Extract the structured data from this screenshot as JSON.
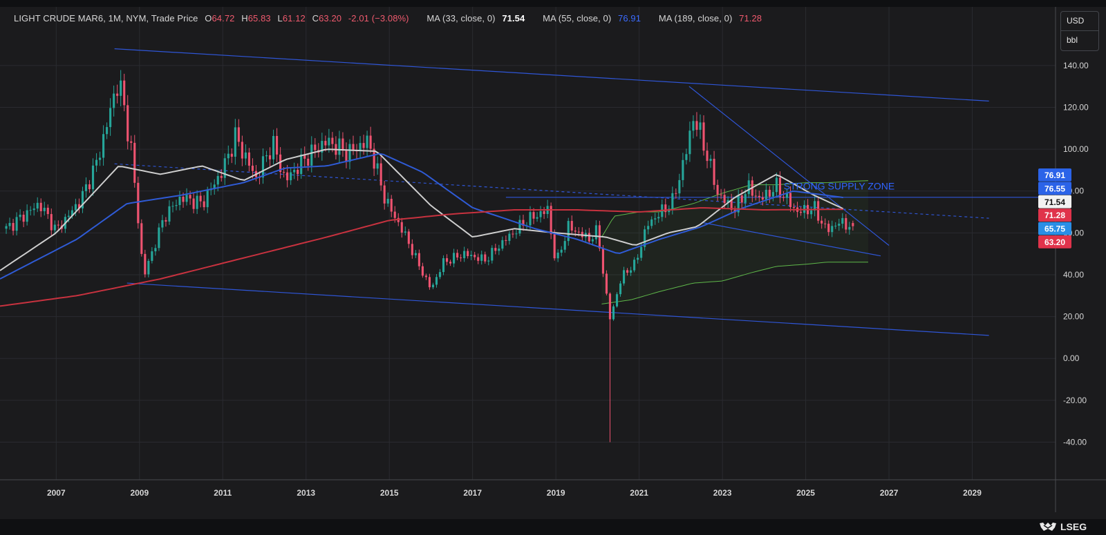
{
  "legend": {
    "symbol": "LIGHT CRUDE MAR6, 1M, NYM, Trade Price",
    "open_label": "O",
    "open": "64.72",
    "high_label": "H",
    "high": "65.83",
    "low_label": "L",
    "low": "61.12",
    "close_label": "C",
    "close": "63.20",
    "change": "-2.01 (−3.08%)",
    "ma33_label": "MA (33, close, 0)",
    "ma33_value": "71.54",
    "ma55_label": "MA (55, close, 0)",
    "ma55_value": "76.91",
    "ma189_label": "MA (189, close, 0)",
    "ma189_value": "71.28"
  },
  "currency": {
    "unit": "USD",
    "per": "bbl"
  },
  "brand": "LSEG",
  "annotation": "STRONG SUPPLY ZONE",
  "colors": {
    "up": "#26a69a",
    "down": "#ef5370",
    "ma33": "#cfcfcf",
    "ma55": "#2f5bd6",
    "ma189": "#c8323f",
    "trendline": "#2f56d8",
    "band": "#5fb84a",
    "grid": "#2a2b30"
  },
  "chart_data": {
    "type": "candlestick",
    "title": "LIGHT CRUDE MAR6, 1M, NYM, Trade Price",
    "x_ticks": [
      "2007",
      "2009",
      "2011",
      "2013",
      "2015",
      "2017",
      "2019",
      "2021",
      "2023",
      "2025",
      "2027",
      "2029"
    ],
    "y_ticks": [
      "140.00",
      "120.00",
      "100.00",
      "80.00",
      "60.00",
      "40.00",
      "20.00",
      "0.00",
      "-20.00",
      "-40.00"
    ],
    "ylim": [
      -58,
      168
    ],
    "xlim": [
      2005.65,
      2031.0
    ],
    "ohlc_keypoints": [
      [
        2005.8,
        62
      ],
      [
        2006.6,
        74
      ],
      [
        2007.0,
        61
      ],
      [
        2007.6,
        76
      ],
      [
        2008.0,
        95
      ],
      [
        2008.5,
        134
      ],
      [
        2008.8,
        100
      ],
      [
        2009.1,
        39
      ],
      [
        2009.6,
        68
      ],
      [
        2010.0,
        77
      ],
      [
        2010.5,
        74
      ],
      [
        2011.0,
        90
      ],
      [
        2011.3,
        106
      ],
      [
        2011.8,
        86
      ],
      [
        2012.2,
        103
      ],
      [
        2012.5,
        85
      ],
      [
        2013.0,
        96
      ],
      [
        2013.5,
        104
      ],
      [
        2014.0,
        98
      ],
      [
        2014.5,
        104
      ],
      [
        2014.9,
        76
      ],
      [
        2015.4,
        58
      ],
      [
        2015.7,
        45
      ],
      [
        2016.0,
        33
      ],
      [
        2016.3,
        46
      ],
      [
        2016.8,
        50
      ],
      [
        2017.3,
        47
      ],
      [
        2017.8,
        57
      ],
      [
        2018.3,
        66
      ],
      [
        2018.8,
        71
      ],
      [
        2019.0,
        45
      ],
      [
        2019.3,
        63
      ],
      [
        2019.8,
        57
      ],
      [
        2020.0,
        61
      ],
      [
        2020.2,
        32
      ],
      [
        2020.3,
        19
      ],
      [
        2020.6,
        40
      ],
      [
        2020.9,
        45
      ],
      [
        2021.2,
        64
      ],
      [
        2021.8,
        75
      ],
      [
        2022.1,
        96
      ],
      [
        2022.3,
        115
      ],
      [
        2022.5,
        106
      ],
      [
        2022.9,
        78
      ],
      [
        2023.3,
        71
      ],
      [
        2023.6,
        82
      ],
      [
        2023.9,
        76
      ],
      [
        2024.3,
        82
      ],
      [
        2024.8,
        70
      ],
      [
        2025.2,
        72
      ],
      [
        2025.5,
        61
      ],
      [
        2025.8,
        65
      ],
      [
        2026.1,
        63.2
      ]
    ],
    "last_candle": {
      "open": 64.72,
      "high": 65.83,
      "low": 61.12,
      "close": 63.2
    },
    "spike_low": -40,
    "moving_averages": [
      {
        "name": "MA (33, close, 0)",
        "last": 71.54,
        "keypoints": [
          [
            2005.65,
            42
          ],
          [
            2007.0,
            60
          ],
          [
            2008.5,
            92
          ],
          [
            2009.5,
            88
          ],
          [
            2010.5,
            92
          ],
          [
            2011.5,
            85
          ],
          [
            2012.5,
            95
          ],
          [
            2013.5,
            100
          ],
          [
            2014.7,
            99
          ],
          [
            2016.0,
            73
          ],
          [
            2017.0,
            58
          ],
          [
            2018.0,
            62
          ],
          [
            2019.0,
            60
          ],
          [
            2020.2,
            58
          ],
          [
            2020.9,
            54
          ],
          [
            2021.7,
            60
          ],
          [
            2022.4,
            63
          ],
          [
            2023.3,
            77
          ],
          [
            2024.3,
            88
          ],
          [
            2025.2,
            78
          ],
          [
            2025.9,
            71.54
          ]
        ]
      },
      {
        "name": "MA (55, close, 0)",
        "last": 76.91,
        "keypoints": [
          [
            2005.65,
            38
          ],
          [
            2007.5,
            57
          ],
          [
            2008.7,
            74
          ],
          [
            2010.0,
            78
          ],
          [
            2011.5,
            84
          ],
          [
            2012.5,
            91
          ],
          [
            2013.5,
            92
          ],
          [
            2014.8,
            98
          ],
          [
            2015.8,
            89
          ],
          [
            2017.0,
            72
          ],
          [
            2018.5,
            62
          ],
          [
            2019.5,
            57
          ],
          [
            2020.5,
            50
          ],
          [
            2021.5,
            57
          ],
          [
            2022.5,
            63
          ],
          [
            2023.5,
            72
          ],
          [
            2024.7,
            80
          ],
          [
            2025.9,
            76.91
          ]
        ]
      },
      {
        "name": "MA (189, close, 0)",
        "last": 71.28,
        "keypoints": [
          [
            2005.65,
            25
          ],
          [
            2007.5,
            30
          ],
          [
            2009.5,
            38
          ],
          [
            2011.5,
            48
          ],
          [
            2013.5,
            58
          ],
          [
            2015.0,
            66
          ],
          [
            2016.5,
            69
          ],
          [
            2018.0,
            71
          ],
          [
            2019.5,
            71
          ],
          [
            2021.0,
            70
          ],
          [
            2022.5,
            72
          ],
          [
            2024.0,
            71
          ],
          [
            2025.9,
            71.28
          ]
        ]
      }
    ],
    "level_labels": [
      {
        "value": "76.91",
        "color": "#2b63e8"
      },
      {
        "value": "76.55",
        "color": "#2b63e8"
      },
      {
        "value": "71.54",
        "color": "#f2f2f2"
      },
      {
        "value": "71.28",
        "color": "#e0334b"
      },
      {
        "value": "65.75",
        "color": "#2a8ee6"
      },
      {
        "value": "63.20",
        "color": "#e0334b"
      }
    ],
    "trendlines": [
      {
        "from": [
          2008.4,
          148
        ],
        "to": [
          2029.4,
          123
        ],
        "style": "solid"
      },
      {
        "from": [
          2008.7,
          36
        ],
        "to": [
          2029.4,
          11
        ],
        "style": "solid"
      },
      {
        "from": [
          2008.4,
          93
        ],
        "to": [
          2029.4,
          67
        ],
        "style": "dashed"
      },
      {
        "from": [
          2017.8,
          77
        ],
        "to": [
          2031.0,
          77
        ],
        "style": "solid"
      },
      {
        "from": [
          2022.2,
          130
        ],
        "to": [
          2027.0,
          54
        ],
        "style": "solid"
      },
      {
        "from": [
          2022.5,
          65
        ],
        "to": [
          2026.8,
          49
        ],
        "style": "solid"
      }
    ],
    "envelope": {
      "upper": [
        [
          2020.1,
          58
        ],
        [
          2020.4,
          68
        ],
        [
          2021.0,
          70
        ],
        [
          2021.5,
          70
        ],
        [
          2022.3,
          74
        ],
        [
          2023.0,
          79
        ],
        [
          2023.7,
          83
        ],
        [
          2024.3,
          83
        ],
        [
          2025.0,
          84
        ],
        [
          2025.5,
          84
        ],
        [
          2026.5,
          85
        ]
      ],
      "lower": [
        [
          2020.1,
          26
        ],
        [
          2020.8,
          28
        ],
        [
          2021.5,
          32
        ],
        [
          2022.3,
          36
        ],
        [
          2023.0,
          37
        ],
        [
          2023.7,
          41
        ],
        [
          2024.3,
          44
        ],
        [
          2025.0,
          45
        ],
        [
          2025.5,
          46
        ],
        [
          2026.5,
          46
        ]
      ]
    },
    "annotations": [
      {
        "text": "STRONG SUPPLY ZONE",
        "at": [
          2025.7,
          82
        ]
      }
    ]
  }
}
